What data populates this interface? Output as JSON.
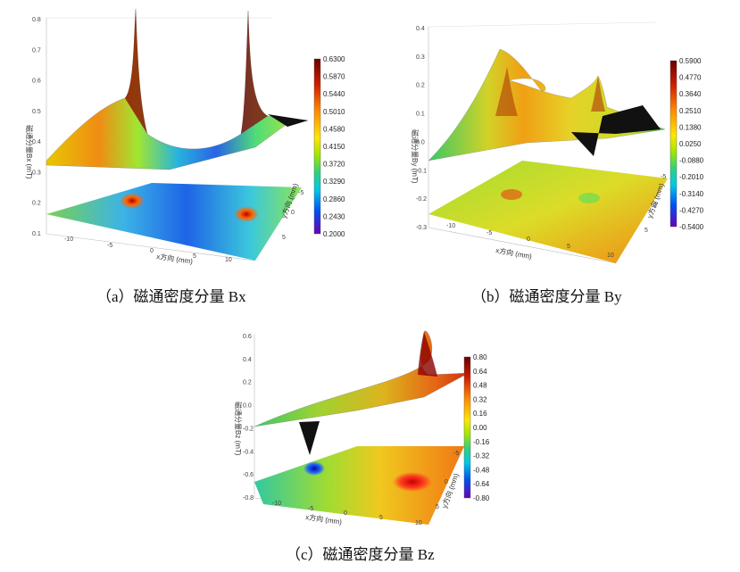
{
  "captions": {
    "a": "（a）磁通密度分量 Bx",
    "b": "（b）磁通密度分量 By",
    "c": "（c）磁通密度分量 Bz"
  },
  "chart_data": [
    {
      "type": "surface",
      "panel": "a",
      "caption": "（a）磁通密度分量 Bx",
      "zlabel": "磁通分量Bx (mT)",
      "xlabel": "x方向 (mm)",
      "ylabel": "y方向 (mm)",
      "z_ticks": [
        "0.1",
        "0.2",
        "0.3",
        "0.4",
        "0.5",
        "0.6",
        "0.7",
        "0.8"
      ],
      "x_ticks": [
        "-10",
        "-5",
        "0",
        "5",
        "10"
      ],
      "y_ticks": [
        "-5",
        "0",
        "5"
      ],
      "colorbar": [
        "0.6300",
        "0.5870",
        "0.5440",
        "0.5010",
        "0.4580",
        "0.4150",
        "0.3720",
        "0.3290",
        "0.2860",
        "0.2430",
        "0.2000"
      ],
      "colors": [
        "#7a0000",
        "#c81e00",
        "#ff5a00",
        "#ffb400",
        "#ffff00",
        "#a0e600",
        "#3cdc50",
        "#00d2c8",
        "#0096ff",
        "#0032e6",
        "#5a00b4"
      ]
    },
    {
      "type": "surface",
      "panel": "b",
      "caption": "（b）磁通密度分量 By",
      "zlabel": "磁通分量By (mT)",
      "xlabel": "x方向 (mm)",
      "ylabel": "y方向 (mm)",
      "z_ticks": [
        "-0.3",
        "-0.2",
        "-0.1",
        "0.0",
        "0.1",
        "0.2",
        "0.3",
        "0.4"
      ],
      "x_ticks": [
        "-10",
        "-5",
        "0",
        "5",
        "10"
      ],
      "y_ticks": [
        "-5",
        "0",
        "5"
      ],
      "colorbar": [
        "0.5900",
        "0.4770",
        "0.3640",
        "0.2510",
        "0.1380",
        "0.0250",
        "-0.0880",
        "-0.2010",
        "-0.3140",
        "-0.4270",
        "-0.5400"
      ],
      "colors": [
        "#7a0000",
        "#c81e00",
        "#ff5a00",
        "#ffb400",
        "#ffff00",
        "#a0e600",
        "#3cdc50",
        "#00d2c8",
        "#0096ff",
        "#0032e6",
        "#5a00b4"
      ]
    },
    {
      "type": "surface",
      "panel": "c",
      "caption": "（c）磁通密度分量 Bz",
      "zlabel": "磁通分量Bz (mT)",
      "xlabel": "x方向 (mm)",
      "ylabel": "y方向 (mm)",
      "z_ticks": [
        "-0.8",
        "-0.6",
        "-0.4",
        "-0.2",
        "0.0",
        "0.2",
        "0.4",
        "0.6"
      ],
      "x_ticks": [
        "-10",
        "-5",
        "0",
        "5",
        "10"
      ],
      "y_ticks": [
        "-5",
        "0",
        "5"
      ],
      "colorbar": [
        "0.80",
        "0.64",
        "0.48",
        "0.32",
        "0.16",
        "0.00",
        "-0.16",
        "-0.32",
        "-0.48",
        "-0.64",
        "-0.80"
      ],
      "colors": [
        "#7a0000",
        "#c81e00",
        "#ff5a00",
        "#ffb400",
        "#ffff00",
        "#a0e600",
        "#3cdc50",
        "#00d2c8",
        "#0096ff",
        "#0032e6",
        "#5a00b4"
      ]
    }
  ]
}
